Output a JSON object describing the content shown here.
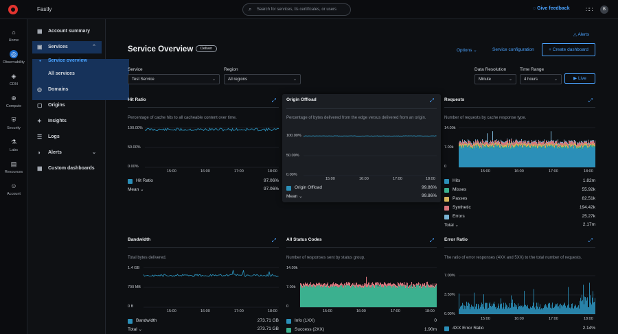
{
  "topbar": {
    "app_name": "Fastly",
    "search_placeholder": "Search for services, tls certificates, or users",
    "feedback_label": "Give feedback",
    "avatar_initial": "B"
  },
  "rail": [
    {
      "label": "Home",
      "icon": "home-icon"
    },
    {
      "label": "Observability",
      "icon": "observability-icon",
      "active": true
    },
    {
      "label": "CDN",
      "icon": "cdn-icon"
    },
    {
      "label": "Compute",
      "icon": "compute-icon"
    },
    {
      "label": "Security",
      "icon": "security-icon"
    },
    {
      "label": "Labs",
      "icon": "labs-icon"
    },
    {
      "label": "Resources",
      "icon": "resources-icon"
    },
    {
      "label": "Account",
      "icon": "account-icon"
    }
  ],
  "sidebar": {
    "account_summary": "Account summary",
    "services": "Services",
    "service_overview": "Service overview",
    "all_services": "All services",
    "domains": "Domains",
    "origins": "Origins",
    "insights": "Insights",
    "logs": "Logs",
    "alerts": "Alerts",
    "custom_dashboards": "Custom dashboards"
  },
  "header": {
    "alerts_link": "Alerts",
    "title": "Service Overview",
    "badge": "Deliver",
    "options": "Options",
    "service_configuration": "Service configuration",
    "create_dashboard": "+ Create dashboard"
  },
  "filters": {
    "service_label": "Service",
    "service_value": "Test Service",
    "region_label": "Region",
    "region_value": "All regions",
    "resolution_label": "Data Resolution",
    "resolution_value": "Minute",
    "range_label": "Time Range",
    "range_value": "4 hours",
    "live_label": "Live"
  },
  "colors": {
    "accent": "#4aa3ff",
    "hits": "#2b8fb8",
    "misses": "#3bb08f",
    "passes": "#d6b45c",
    "synthetic": "#d9757d",
    "errors": "#7ab3d4",
    "info": "#2b8fb8",
    "success": "#3bb08f"
  },
  "x_ticks": [
    "15:00",
    "16:00",
    "17:00",
    "18:00"
  ],
  "cards": {
    "hit_ratio": {
      "title": "Hit Ratio",
      "desc": "Percentage of cache hits to all cacheable content over time.",
      "yticks": [
        "100.00%",
        "50.00%",
        "0.00%"
      ],
      "legend_label": "Hit Ratio",
      "legend_value": "97.06%",
      "summary_label": "Mean",
      "summary_value": "97.06%"
    },
    "origin_offload": {
      "title": "Origin Offload",
      "desc": "Percentage of bytes delivered from the edge versus delivered from an origin.",
      "yticks": [
        "100.00%",
        "50.00%",
        "0.00%"
      ],
      "legend_label": "Origin Offload",
      "legend_value": "99.86%",
      "summary_label": "Mean",
      "summary_value": "99.86%"
    },
    "requests": {
      "title": "Requests",
      "desc": "Number of requests by cache response type.",
      "yticks": [
        "14.00k",
        "7.00k",
        "0"
      ],
      "legend": [
        {
          "label": "Hits",
          "value": "1.82m",
          "color": "#2b8fb8"
        },
        {
          "label": "Misses",
          "value": "55.92k",
          "color": "#3bb08f"
        },
        {
          "label": "Passes",
          "value": "82.51k",
          "color": "#d6b45c"
        },
        {
          "label": "Synthetic",
          "value": "194.42k",
          "color": "#d9757d"
        },
        {
          "label": "Errors",
          "value": "25.27k",
          "color": "#7ab3d4"
        }
      ],
      "summary_label": "Total",
      "summary_value": "2.17m"
    },
    "bandwidth": {
      "title": "Bandwidth",
      "desc": "Total bytes delivered.",
      "yticks": [
        "1.4 GB",
        "700 MB",
        "0 B"
      ],
      "legend_label": "Bandwidth",
      "legend_value": "273.71 GB",
      "summary_label": "Total",
      "summary_value": "273.71 GB"
    },
    "status_codes": {
      "title": "All Status Codes",
      "desc": "Number of responses sent by status group.",
      "yticks": [
        "14.00k",
        "7.00k",
        "0"
      ],
      "legend": [
        {
          "label": "Info (1XX)",
          "value": "0",
          "color": "#2b8fb8"
        },
        {
          "label": "Success (2XX)",
          "value": "1.90m",
          "color": "#3bb08f"
        }
      ]
    },
    "error_ratio": {
      "title": "Error Ratio",
      "desc": "The ratio of error responses (4XX and 5XX) to the total number of requests.",
      "yticks": [
        "7.00%",
        "3.50%",
        "0.00%"
      ],
      "legend_label": "4XX Error Ratio",
      "legend_value": "2.14%"
    }
  }
}
